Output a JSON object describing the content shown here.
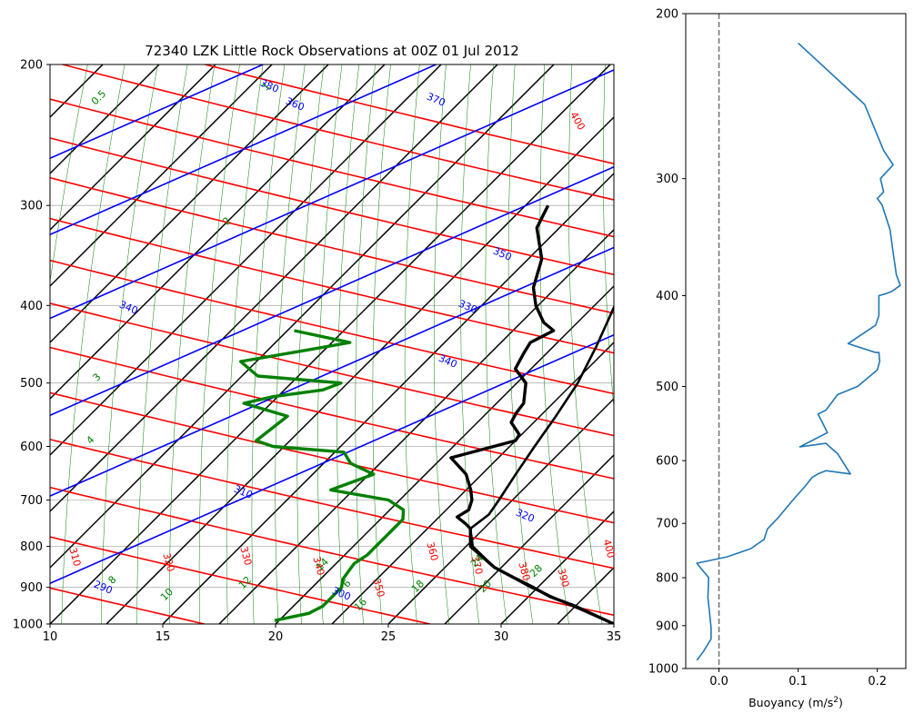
{
  "title": "72340 LZK Little Rock Observations at 00Z 01 Jul 2012",
  "chart_data": [
    {
      "type": "line",
      "subtype": "skew-t",
      "title": "72340 LZK Little Rock Observations at 00Z 01 Jul 2012",
      "xlim": [
        10,
        35
      ],
      "ylim": [
        1000,
        200
      ],
      "yscale": "log",
      "x_ticks": [
        "10",
        "15",
        "20",
        "25",
        "30",
        "35"
      ],
      "y_ticks": [
        "200",
        "300",
        "400",
        "500",
        "600",
        "700",
        "800",
        "900",
        "1000"
      ],
      "grid": true,
      "series": [
        {
          "role": "temperature",
          "color": "#000000",
          "p": [
            1000,
            950,
            925,
            900,
            875,
            850,
            800,
            760,
            750,
            735,
            720,
            700,
            680,
            650,
            620,
            590,
            580,
            560,
            545,
            530,
            500,
            480,
            460,
            445,
            430,
            420,
            400,
            380,
            350,
            320,
            300
          ],
          "t": [
            35.0,
            32.5,
            31.0,
            29.8,
            28.5,
            27.2,
            25.2,
            24.4,
            24.0,
            23.3,
            23.5,
            23.2,
            22.7,
            21.8,
            20.4,
            22.5,
            22.4,
            21.5,
            21.3,
            21.2,
            20.4,
            19.3,
            19.0,
            18.8,
            19.3,
            18.5,
            17.4,
            16.5,
            15.6,
            14.0,
            13.5
          ]
        },
        {
          "role": "dewpoint",
          "color": "#008000",
          "p": [
            990,
            970,
            950,
            900,
            880,
            860,
            840,
            820,
            800,
            780,
            760,
            740,
            720,
            700,
            680,
            650,
            630,
            610,
            600,
            590,
            550,
            530,
            520,
            510,
            500,
            490,
            470,
            455,
            445,
            430
          ],
          "t": [
            19.8,
            21.0,
            21.3,
            21.3,
            21.0,
            20.9,
            20.8,
            21.0,
            21.0,
            21.0,
            21.0,
            21.0,
            20.6,
            19.5,
            16.5,
            17.7,
            16.2,
            15.4,
            12.0,
            11.0,
            11.3,
            8.8,
            9.8,
            11.7,
            12.2,
            8.2,
            6.8,
            9.2,
            10.8,
            7.8
          ]
        },
        {
          "role": "parcel",
          "color": "#000000",
          "p": [
            1000,
            950,
            900,
            850,
            800,
            760,
            730,
            700,
            650,
            600,
            550,
            500,
            450,
            400,
            350,
            300,
            260
          ],
          "t": [
            35.0,
            32.4,
            29.7,
            27.2,
            25.3,
            24.4,
            24.6,
            24.4,
            24.0,
            23.6,
            23.2,
            22.7,
            21.9,
            20.9,
            19.4,
            17.7,
            15.8
          ]
        }
      ],
      "isotherm_labels": [],
      "dry_adiabat_labels": [
        "310",
        "320",
        "330",
        "340",
        "350",
        "360",
        "370",
        "380",
        "390",
        "400"
      ],
      "moist_adiabat_labels": [
        "290",
        "300",
        "310",
        "320",
        "330",
        "340",
        "350",
        "360",
        "370",
        "380"
      ],
      "mixing_ratio_labels": [
        "0.5",
        "1",
        "2",
        "3",
        "4",
        "6",
        "8",
        "10",
        "12",
        "14",
        "16",
        "18",
        "20",
        "24",
        "28"
      ]
    },
    {
      "type": "line",
      "title": "",
      "xlabel": "Buoyancy (m/s²)",
      "xlabel_text": "Buoyancy (m/s",
      "xlabel_sup": "2",
      "xlabel_close": ")",
      "xlim": [
        -0.042,
        0.236
      ],
      "ylim": [
        1000,
        200
      ],
      "yscale": "log",
      "x_ticks": [
        "0.0",
        "0.1",
        "0.2"
      ],
      "y_ticks": [
        "200",
        "300",
        "400",
        "500",
        "600",
        "700",
        "800",
        "900",
        "1000"
      ],
      "zero_line": true,
      "series": [
        {
          "color": "#1f77b4",
          "buoyancy": [
            -0.028,
            -0.02,
            -0.01,
            -0.01,
            -0.012,
            -0.014,
            -0.013,
            -0.028,
            0.01,
            0.04,
            0.057,
            0.061,
            0.075,
            0.094,
            0.108,
            0.118,
            0.125,
            0.135,
            0.166,
            0.15,
            0.135,
            0.102,
            0.137,
            0.13,
            0.125,
            0.135,
            0.15,
            0.175,
            0.2,
            0.203,
            0.202,
            0.198,
            0.163,
            0.198,
            0.202,
            0.202,
            0.211,
            0.218,
            0.229,
            0.224,
            0.22,
            0.216,
            0.206,
            0.2,
            0.208,
            0.204,
            0.22,
            0.208,
            0.184,
            0.1
          ],
          "p": [
            980,
            960,
            930,
            905,
            870,
            840,
            800,
            772,
            760,
            745,
            728,
            710,
            690,
            660,
            640,
            625,
            620,
            615,
            620,
            590,
            575,
            580,
            560,
            545,
            535,
            530,
            510,
            500,
            480,
            470,
            460,
            460,
            450,
            430,
            420,
            400,
            398,
            396,
            390,
            380,
            360,
            340,
            320,
            315,
            310,
            300,
            290,
            280,
            250,
            215
          ]
        }
      ]
    }
  ]
}
